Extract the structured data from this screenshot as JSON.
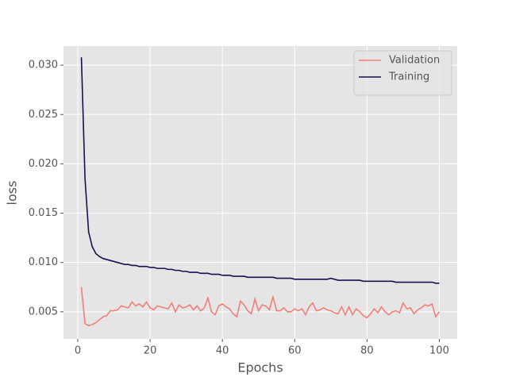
{
  "chart_data": {
    "type": "line",
    "x_label": "Epochs",
    "y_label": "loss",
    "x": [
      1,
      2,
      3,
      4,
      5,
      6,
      7,
      8,
      9,
      10,
      11,
      12,
      13,
      14,
      15,
      16,
      17,
      18,
      19,
      20,
      21,
      22,
      23,
      24,
      25,
      26,
      27,
      28,
      29,
      30,
      31,
      32,
      33,
      34,
      35,
      36,
      37,
      38,
      39,
      40,
      41,
      42,
      43,
      44,
      45,
      46,
      47,
      48,
      49,
      50,
      51,
      52,
      53,
      54,
      55,
      56,
      57,
      58,
      59,
      60,
      61,
      62,
      63,
      64,
      65,
      66,
      67,
      68,
      69,
      70,
      71,
      72,
      73,
      74,
      75,
      76,
      77,
      78,
      79,
      80,
      81,
      82,
      83,
      84,
      85,
      86,
      87,
      88,
      89,
      90,
      91,
      92,
      93,
      94,
      95,
      96,
      97,
      98,
      99,
      100
    ],
    "series": [
      {
        "name": "Validation",
        "color": "#f27f7a",
        "values": [
          0.0075,
          0.0038,
          0.0036,
          0.0037,
          0.0039,
          0.0042,
          0.0045,
          0.0046,
          0.0051,
          0.0051,
          0.0052,
          0.0056,
          0.0055,
          0.0054,
          0.006,
          0.0056,
          0.0058,
          0.0055,
          0.006,
          0.0054,
          0.0052,
          0.0056,
          0.0055,
          0.0054,
          0.0053,
          0.0059,
          0.005,
          0.0057,
          0.0054,
          0.0055,
          0.0057,
          0.0052,
          0.0056,
          0.0051,
          0.0054,
          0.0064,
          0.005,
          0.0047,
          0.0056,
          0.0058,
          0.0055,
          0.0053,
          0.0048,
          0.0045,
          0.0061,
          0.0057,
          0.0051,
          0.0048,
          0.0063,
          0.0051,
          0.0057,
          0.0056,
          0.0052,
          0.0065,
          0.0051,
          0.0051,
          0.0054,
          0.005,
          0.005,
          0.0053,
          0.0051,
          0.0053,
          0.0047,
          0.0055,
          0.0059,
          0.0051,
          0.0052,
          0.0054,
          0.0052,
          0.0051,
          0.0049,
          0.0048,
          0.0055,
          0.0047,
          0.0055,
          0.0047,
          0.0053,
          0.005,
          0.0046,
          0.0044,
          0.0048,
          0.0053,
          0.0049,
          0.0055,
          0.005,
          0.0047,
          0.005,
          0.0051,
          0.0049,
          0.0059,
          0.0053,
          0.0054,
          0.0048,
          0.0052,
          0.0054,
          0.0057,
          0.0056,
          0.0058,
          0.0045,
          0.005
        ]
      },
      {
        "name": "Training",
        "color": "#16124f",
        "values": [
          0.0308,
          0.0185,
          0.0131,
          0.0116,
          0.0109,
          0.0106,
          0.0104,
          0.0103,
          0.0102,
          0.0101,
          0.01,
          0.0099,
          0.0098,
          0.0098,
          0.0097,
          0.0097,
          0.0096,
          0.0096,
          0.0096,
          0.0095,
          0.0095,
          0.0094,
          0.0094,
          0.0094,
          0.0093,
          0.0093,
          0.0092,
          0.0092,
          0.0091,
          0.0091,
          0.009,
          0.009,
          0.009,
          0.0089,
          0.0089,
          0.0089,
          0.0088,
          0.0088,
          0.0088,
          0.0087,
          0.0087,
          0.0087,
          0.0086,
          0.0086,
          0.0086,
          0.0086,
          0.0085,
          0.0085,
          0.0085,
          0.0085,
          0.0085,
          0.0085,
          0.0085,
          0.0085,
          0.0084,
          0.0084,
          0.0084,
          0.0084,
          0.0084,
          0.0083,
          0.0083,
          0.0083,
          0.0083,
          0.0083,
          0.0083,
          0.0083,
          0.0083,
          0.0083,
          0.0083,
          0.0084,
          0.0083,
          0.0082,
          0.0082,
          0.0082,
          0.0082,
          0.0082,
          0.0082,
          0.0082,
          0.0081,
          0.0081,
          0.0081,
          0.0081,
          0.0081,
          0.0081,
          0.0081,
          0.0081,
          0.0081,
          0.008,
          0.008,
          0.008,
          0.008,
          0.008,
          0.008,
          0.008,
          0.008,
          0.008,
          0.008,
          0.008,
          0.0079,
          0.0079
        ]
      }
    ],
    "xlim": [
      -3.95,
      104.95
    ],
    "xticks": [
      0,
      20,
      40,
      60,
      80,
      100
    ],
    "ylim": [
      0.00225,
      0.03194
    ],
    "yticks": [
      0.005,
      {
        "value": 0.01,
        "label": "0.010"
      },
      0.015,
      {
        "value": 0.02,
        "label": "0.020"
      },
      0.025,
      {
        "value": 0.03,
        "label": "0.030"
      }
    ],
    "grid": true,
    "legend": "upper right"
  }
}
